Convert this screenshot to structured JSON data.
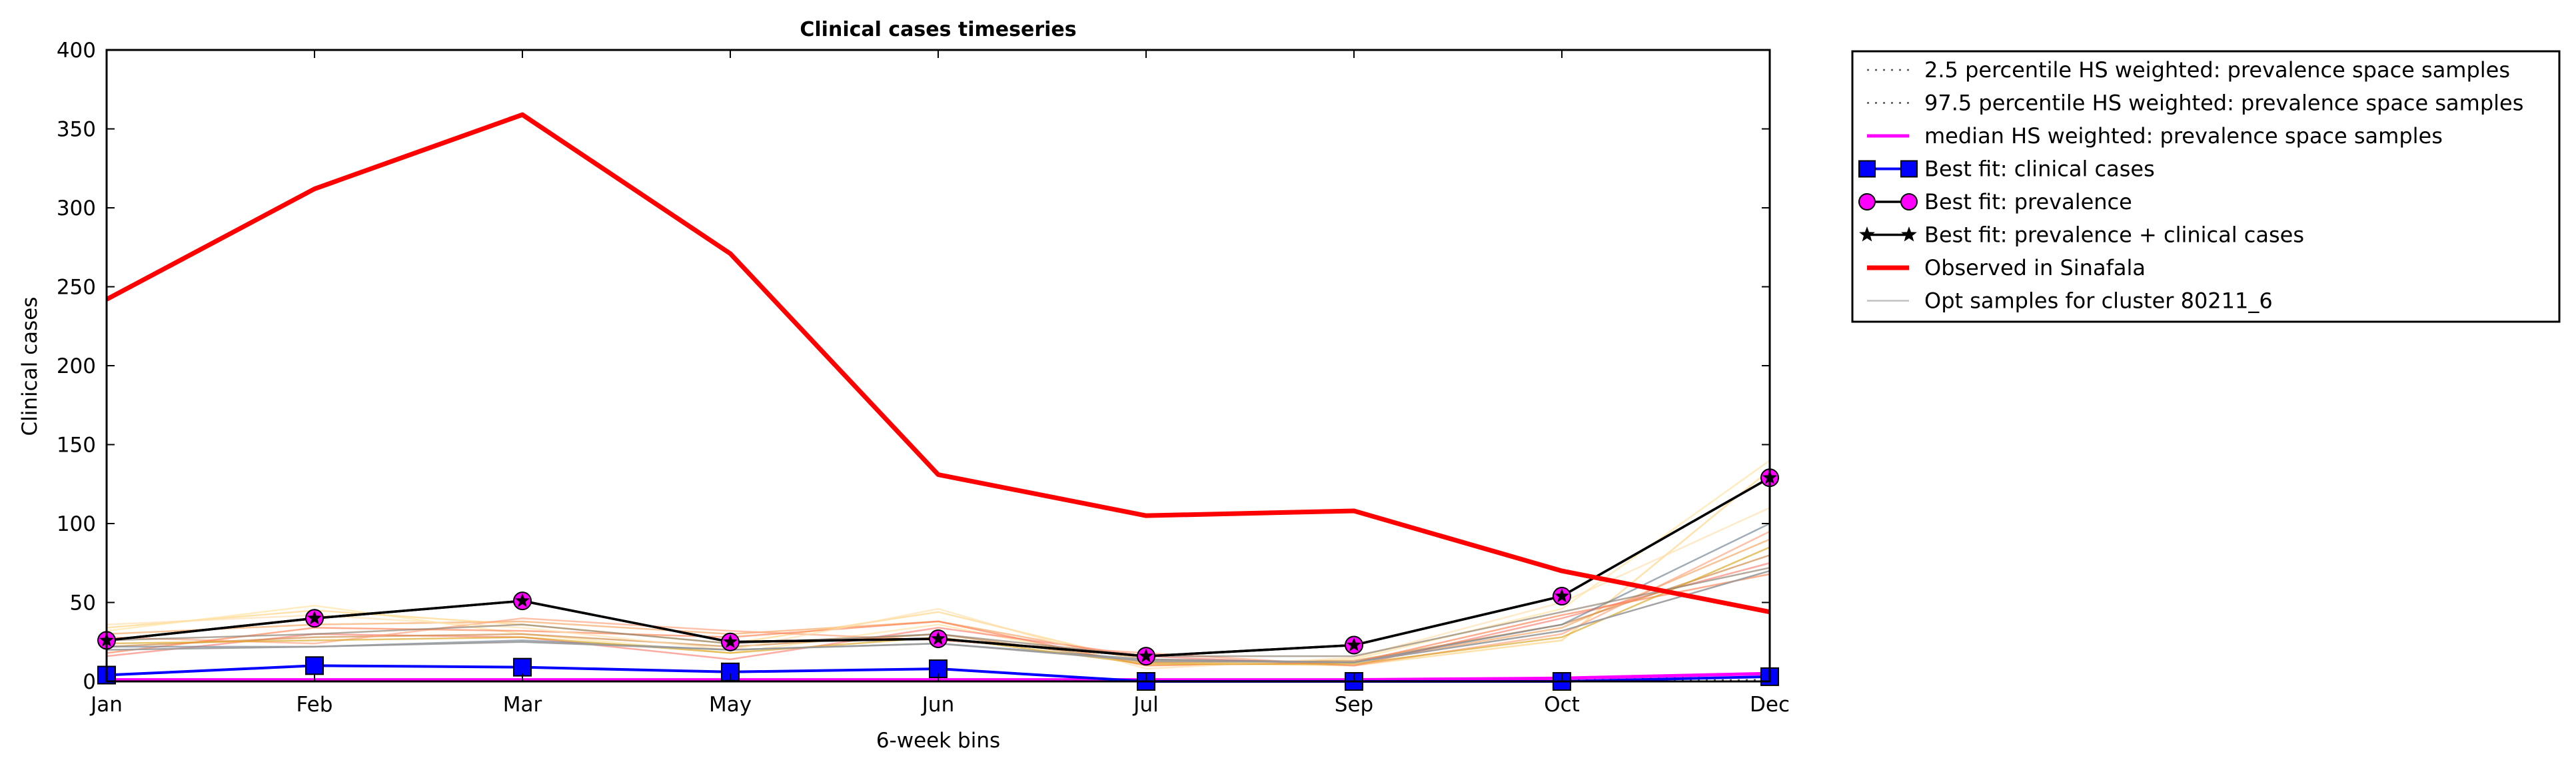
{
  "chart_data": {
    "type": "line",
    "title": "Clinical cases timeseries",
    "xlabel": "6-week bins",
    "ylabel": "Clinical cases",
    "categories": [
      "Jan",
      "Feb",
      "Mar",
      "May",
      "Jun",
      "Jul",
      "Sep",
      "Oct",
      "Dec"
    ],
    "yticks": [
      "0",
      "50",
      "100",
      "150",
      "200",
      "250",
      "300",
      "350",
      "400"
    ],
    "ylim": [
      0,
      400
    ],
    "grid": false,
    "legend_position": "outside-top-right",
    "series": [
      {
        "name": "2.5 percentile HS weighted: prevalence space samples",
        "color": "#555555",
        "style": "dotted",
        "values": [
          0,
          0,
          0,
          0,
          0,
          0,
          0,
          0,
          1
        ]
      },
      {
        "name": "97.5 percentile HS weighted: prevalence space samples",
        "color": "#555555",
        "style": "dotted",
        "values": [
          1,
          1,
          1,
          1,
          1,
          1,
          1,
          1,
          3
        ]
      },
      {
        "name": "median HS weighted: prevalence space samples",
        "color": "#ff00ff",
        "style": "solid",
        "values": [
          1,
          1,
          1,
          1,
          1,
          1,
          1,
          2,
          5
        ]
      },
      {
        "name": "Best fit: clinical cases",
        "color": "#0000ff",
        "style": "solid",
        "marker": "square",
        "values": [
          4,
          10,
          9,
          6,
          8,
          0,
          0,
          0,
          3
        ]
      },
      {
        "name": "Best fit: prevalence",
        "color": "#000000",
        "style": "solid",
        "marker": "circle",
        "values": [
          26,
          40,
          51,
          25,
          27,
          16,
          23,
          54,
          129
        ]
      },
      {
        "name": "Best fit: prevalence + clinical cases",
        "color": "#000000",
        "style": "solid",
        "marker": "star",
        "values": [
          26,
          40,
          51,
          25,
          27,
          16,
          23,
          54,
          129
        ]
      },
      {
        "name": "Observed in Sinafala",
        "color": "#ff0000",
        "style": "solid",
        "values": [
          242,
          312,
          359,
          271,
          131,
          105,
          108,
          70,
          44
        ]
      },
      {
        "name": "Opt samples for cluster 80211_6",
        "color": "#999999",
        "style": "solid",
        "values": [
          20,
          22,
          25,
          20,
          24,
          13,
          12,
          32,
          70
        ]
      }
    ],
    "sample_lines": [
      {
        "color": "#f4a460",
        "values": [
          30,
          36,
          38,
          30,
          38,
          14,
          12,
          34,
          90
        ]
      },
      {
        "color": "#ffd27f",
        "values": [
          34,
          45,
          36,
          24,
          44,
          12,
          10,
          26,
          134
        ]
      },
      {
        "color": "#ffe4a0",
        "values": [
          32,
          48,
          30,
          18,
          36,
          10,
          14,
          46,
          140
        ]
      },
      {
        "color": "#fa8072",
        "values": [
          16,
          30,
          28,
          14,
          34,
          16,
          10,
          40,
          75
        ]
      },
      {
        "color": "#cd853f",
        "values": [
          22,
          28,
          30,
          22,
          30,
          12,
          13,
          36,
          80
        ]
      },
      {
        "color": "#ffa07a",
        "values": [
          28,
          24,
          40,
          32,
          26,
          18,
          10,
          30,
          95
        ]
      },
      {
        "color": "#ff7f50",
        "values": [
          18,
          34,
          32,
          28,
          38,
          10,
          12,
          42,
          68
        ]
      },
      {
        "color": "#ffdead",
        "values": [
          36,
          42,
          34,
          20,
          46,
          8,
          15,
          50,
          110
        ]
      },
      {
        "color": "#708090",
        "values": [
          22,
          22,
          26,
          20,
          24,
          14,
          12,
          36,
          100
        ]
      },
      {
        "color": "#daa520",
        "values": [
          24,
          26,
          28,
          18,
          28,
          11,
          11,
          28,
          85
        ]
      },
      {
        "color": "#8b7d6b",
        "values": [
          26,
          30,
          36,
          24,
          30,
          16,
          16,
          44,
          72
        ]
      }
    ]
  }
}
